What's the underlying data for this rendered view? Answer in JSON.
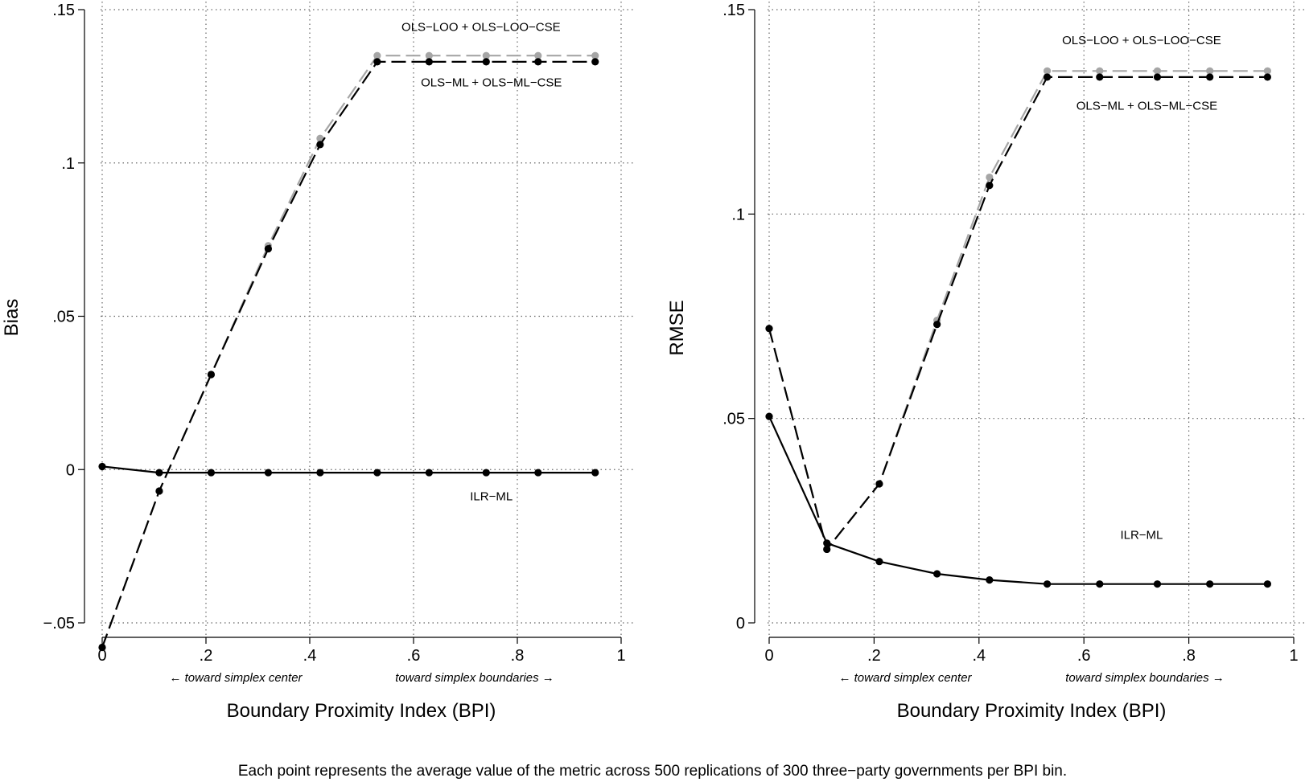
{
  "caption": "Each point represents the average value of the metric across 500 replications of 300 three−party governments per BPI bin.",
  "chart_data": [
    {
      "type": "line",
      "title": "",
      "xlabel": "Boundary Proximity Index (BPI)",
      "ylabel": "Bias",
      "xlim": [
        0,
        1
      ],
      "ylim": [
        -0.05,
        0.15
      ],
      "xticks": [
        0,
        0.2,
        0.4,
        0.6,
        0.8,
        1
      ],
      "xtick_labels": [
        "0",
        ".2",
        ".4",
        ".6",
        ".8",
        "1"
      ],
      "yticks": [
        -0.05,
        0,
        0.05,
        0.1,
        0.15
      ],
      "ytick_labels": [
        "−.05",
        "0",
        ".05",
        ".1",
        ".15"
      ],
      "grid": true,
      "direction_left": "← toward simplex center",
      "direction_right": "toward simplex boundaries →",
      "x": [
        0,
        0.11,
        0.21,
        0.32,
        0.42,
        0.53,
        0.63,
        0.74,
        0.84,
        0.95
      ],
      "series": [
        {
          "name": "OLS−LOO + OLS−LOO−CSE",
          "color": "#a6a6a6",
          "dash": "long",
          "values": [
            -0.058,
            -0.007,
            0.031,
            0.073,
            0.108,
            0.135,
            0.135,
            0.135,
            0.135,
            0.135
          ]
        },
        {
          "name": "OLS−ML + OLS−ML−CSE",
          "color": "#000000",
          "dash": "long",
          "values": [
            -0.058,
            -0.007,
            0.031,
            0.072,
            0.106,
            0.133,
            0.133,
            0.133,
            0.133,
            0.133
          ]
        },
        {
          "name": "ILR−ML",
          "color": "#000000",
          "dash": "solid",
          "values": [
            0.001,
            -0.001,
            -0.001,
            -0.001,
            -0.001,
            -0.001,
            -0.001,
            -0.001,
            -0.001,
            -0.001
          ]
        }
      ],
      "annotations": [
        {
          "text": "OLS−LOO + OLS−LOO−CSE",
          "x": 0.73,
          "y": 0.143
        },
        {
          "text": "OLS−ML + OLS−ML−CSE",
          "x": 0.75,
          "y": 0.125
        },
        {
          "text": "ILR−ML",
          "x": 0.75,
          "y": -0.01
        }
      ]
    },
    {
      "type": "line",
      "title": "",
      "xlabel": "Boundary Proximity Index (BPI)",
      "ylabel": "RMSE",
      "xlim": [
        0,
        1
      ],
      "ylim": [
        0,
        0.15
      ],
      "xticks": [
        0,
        0.2,
        0.4,
        0.6,
        0.8,
        1
      ],
      "xtick_labels": [
        "0",
        ".2",
        ".4",
        ".6",
        ".8",
        "1"
      ],
      "yticks": [
        0,
        0.05,
        0.1,
        0.15
      ],
      "ytick_labels": [
        "0",
        ".05",
        ".1",
        ".15"
      ],
      "grid": true,
      "direction_left": "← toward simplex center",
      "direction_right": "toward simplex boundaries →",
      "x": [
        0,
        0.11,
        0.21,
        0.32,
        0.42,
        0.53,
        0.63,
        0.74,
        0.84,
        0.95
      ],
      "series": [
        {
          "name": "OLS−LOO + OLS−LOO−CSE",
          "color": "#a6a6a6",
          "dash": "long",
          "values": [
            0.072,
            0.018,
            0.034,
            0.074,
            0.109,
            0.135,
            0.135,
            0.135,
            0.135,
            0.135
          ]
        },
        {
          "name": "OLS−ML + OLS−ML−CSE",
          "color": "#000000",
          "dash": "long",
          "values": [
            0.072,
            0.018,
            0.034,
            0.073,
            0.107,
            0.1335,
            0.1335,
            0.1335,
            0.1335,
            0.1335
          ]
        },
        {
          "name": "ILR−ML",
          "color": "#000000",
          "dash": "solid",
          "values": [
            0.0505,
            0.0195,
            0.015,
            0.012,
            0.0105,
            0.0095,
            0.0095,
            0.0095,
            0.0095,
            0.0095
          ]
        }
      ],
      "annotations": [
        {
          "text": "OLS−LOO + OLS−LOO−CSE",
          "x": 0.71,
          "y": 0.1415
        },
        {
          "text": "OLS−ML + OLS−ML−CSE",
          "x": 0.72,
          "y": 0.1255
        },
        {
          "text": "ILR−ML",
          "x": 0.71,
          "y": 0.0205
        }
      ]
    }
  ]
}
